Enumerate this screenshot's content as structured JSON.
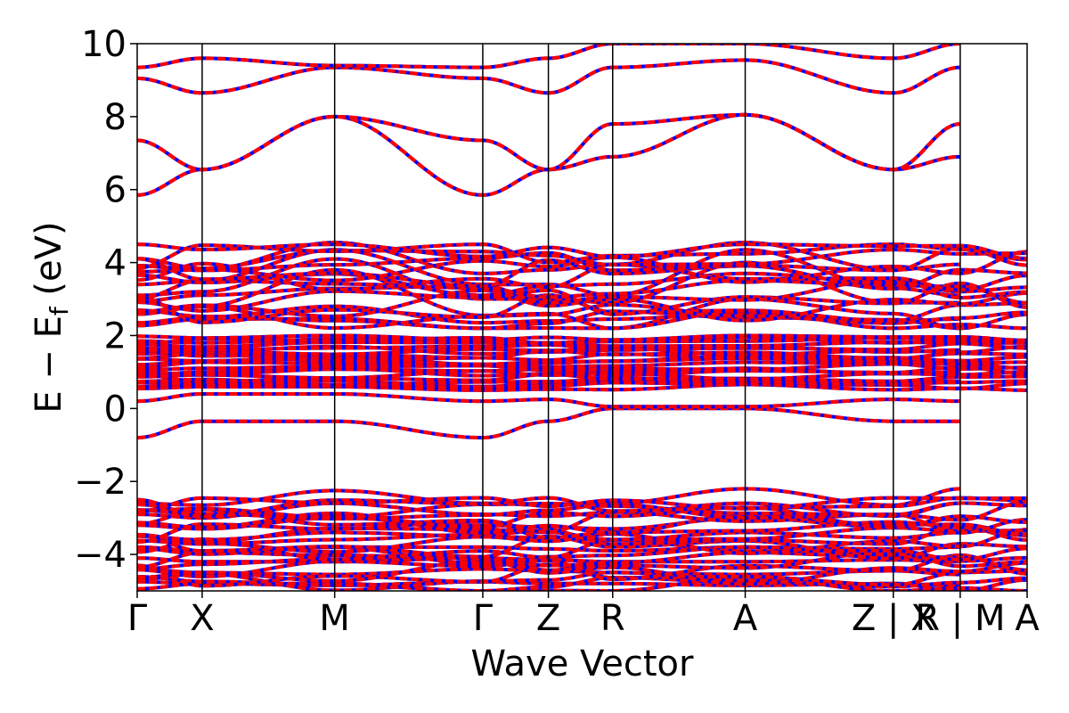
{
  "chart_data": {
    "type": "line",
    "title": "",
    "xlabel": "Wave Vector",
    "ylabel": "E − E",
    "ylabel_sub": "f",
    "ylabel_unit": " (eV)",
    "ylim": [
      -5,
      10
    ],
    "xlim": [
      0,
      13.7
    ],
    "yticks": [
      -4,
      -2,
      0,
      2,
      4,
      6,
      8,
      10
    ],
    "ytick_labels": [
      "−4",
      "−2",
      "0",
      "2",
      "4",
      "6",
      "8",
      "10"
    ],
    "grid": false,
    "high_symmetry_points": [
      {
        "label": "Γ",
        "x": 0.0
      },
      {
        "label": "X",
        "x": 1.0
      },
      {
        "label": "M",
        "x": 3.04
      },
      {
        "label": "Γ",
        "x": 5.32
      },
      {
        "label": "Z",
        "x": 6.33
      },
      {
        "label": "R",
        "x": 7.32
      },
      {
        "label": "A",
        "x": 9.36
      },
      {
        "label": "Z | X",
        "x": 11.64
      },
      {
        "label": "R | M",
        "x": 12.67
      },
      {
        "label": "A",
        "x": 13.7
      }
    ],
    "segment_break_labels": [
      {
        "left": "Z",
        "right": "X",
        "x": 11.64
      },
      {
        "left": "R",
        "right": "M",
        "x": 12.67
      }
    ],
    "series_colors": {
      "band_a": "#ff0000",
      "band_b": "#0000ff"
    },
    "valence_region": [
      -5,
      -2.25
    ],
    "conduction_region": [
      -0.8,
      4.6
    ],
    "upper_bands_region": [
      5.8,
      10
    ],
    "bands": [
      {
        "x": [
          0,
          1,
          3.04,
          5.32,
          6.33,
          7.32,
          9.36,
          11.64,
          12.67
        ],
        "y": [
          -0.8,
          -0.35,
          -0.35,
          -0.8,
          -0.35,
          0.0,
          0.0,
          -0.35,
          -0.35
        ]
      },
      {
        "x": [
          0,
          1,
          3.04,
          5.32,
          6.33,
          7.32,
          9.36,
          11.64,
          12.67
        ],
        "y": [
          0.2,
          0.4,
          0.4,
          0.2,
          0.25,
          0.05,
          0.05,
          0.25,
          0.2
        ]
      },
      {
        "x": [
          0,
          1,
          3.04,
          5.32,
          6.33,
          7.32,
          9.36,
          11.64,
          12.67
        ],
        "y": [
          5.85,
          6.55,
          8.0,
          5.85,
          6.55,
          6.9,
          8.05,
          6.55,
          6.9
        ]
      },
      {
        "x": [
          0,
          1,
          3.04,
          5.32,
          6.33,
          7.32,
          9.36,
          11.64,
          12.67
        ],
        "y": [
          7.35,
          6.55,
          8.0,
          7.35,
          6.55,
          7.8,
          8.05,
          6.55,
          7.8
        ]
      },
      {
        "x": [
          0,
          1,
          3.04,
          5.32,
          6.33,
          7.32,
          9.36,
          11.64,
          12.67
        ],
        "y": [
          9.05,
          8.65,
          9.35,
          9.05,
          8.65,
          9.35,
          9.55,
          8.65,
          9.35
        ]
      },
      {
        "x": [
          0,
          1,
          3.04,
          5.32,
          6.33,
          7.32,
          9.36,
          11.64,
          12.67
        ],
        "y": [
          9.35,
          9.6,
          9.4,
          9.35,
          9.6,
          10.0,
          10.0,
          9.6,
          10.0
        ]
      },
      {
        "x": [
          0,
          1,
          3.04,
          5.32,
          6.33,
          7.32,
          9.36,
          11.64,
          12.67
        ],
        "y": [
          3.75,
          3.8,
          4.55,
          3.7,
          3.8,
          3.95,
          4.55,
          3.8,
          3.95
        ]
      },
      {
        "x": [
          0,
          1,
          3.04,
          5.32,
          6.33,
          7.32,
          9.36,
          11.64,
          12.67
        ],
        "y": [
          3.4,
          3.5,
          4.35,
          3.4,
          3.4,
          3.1,
          4.35,
          3.3,
          3.1
        ]
      },
      {
        "x": [
          0,
          1,
          3.04,
          5.32,
          6.33,
          7.32,
          9.36,
          11.64,
          12.67
        ],
        "y": [
          3.1,
          3.2,
          4.1,
          3.0,
          3.0,
          2.9,
          4.0,
          2.9,
          2.9
        ]
      },
      {
        "x": [
          0,
          1,
          3.04,
          5.32,
          6.33,
          7.32,
          9.36,
          11.64,
          12.67
        ],
        "y": [
          2.6,
          2.8,
          3.8,
          2.55,
          2.6,
          2.2,
          3.0,
          2.6,
          2.2
        ]
      },
      {
        "x": [
          0,
          1,
          3.04,
          5.32,
          6.33,
          7.32,
          9.36,
          11.64,
          12.67
        ],
        "y": [
          2.35,
          2.5,
          2.8,
          2.35,
          2.4,
          2.45,
          2.6,
          2.4,
          2.45
        ]
      },
      {
        "x": [
          0,
          1,
          3.04,
          5.32,
          6.33,
          7.32,
          9.36,
          11.64,
          12.67
        ],
        "y": [
          1.85,
          1.8,
          1.9,
          1.85,
          1.8,
          1.85,
          1.95,
          1.8,
          1.85
        ]
      },
      {
        "x": [
          0,
          1,
          3.04,
          5.32,
          6.33,
          7.32,
          9.36,
          11.64,
          12.67
        ],
        "y": [
          1.5,
          1.55,
          1.7,
          1.5,
          1.55,
          1.6,
          1.7,
          1.55,
          1.6
        ]
      },
      {
        "x": [
          0,
          1,
          3.04,
          5.32,
          6.33,
          7.32,
          9.36,
          11.64,
          12.67
        ],
        "y": [
          1.2,
          1.3,
          1.45,
          1.2,
          1.25,
          1.3,
          1.45,
          1.25,
          1.3
        ]
      },
      {
        "x": [
          0,
          1,
          3.04,
          5.32,
          6.33,
          7.32,
          9.36,
          11.64,
          12.67
        ],
        "y": [
          0.9,
          1.0,
          1.1,
          0.9,
          0.95,
          1.0,
          1.1,
          0.95,
          1.0
        ]
      },
      {
        "x": [
          0,
          1,
          3.04,
          5.32,
          6.33,
          7.32,
          9.36,
          11.64,
          12.67
        ],
        "y": [
          0.6,
          0.7,
          0.75,
          0.6,
          0.7,
          0.75,
          0.75,
          0.7,
          0.75
        ]
      },
      {
        "x": [
          0,
          1,
          3.04,
          5.32,
          6.33,
          7.32,
          9.36,
          11.64,
          12.67
        ],
        "y": [
          -2.6,
          -2.65,
          -2.25,
          -2.6,
          -2.65,
          -2.6,
          -2.2,
          -2.65,
          -2.2
        ]
      },
      {
        "x": [
          0,
          1,
          3.04,
          5.32,
          6.33,
          7.32,
          9.36,
          11.64,
          12.67
        ],
        "y": [
          -2.9,
          -3.0,
          -2.6,
          -2.9,
          -2.95,
          -2.85,
          -2.6,
          -2.95,
          -2.6
        ]
      },
      {
        "x": [
          0,
          1,
          3.04,
          5.32,
          6.33,
          7.32,
          9.36,
          11.64,
          12.67
        ],
        "y": [
          -3.2,
          -3.3,
          -3.0,
          -3.2,
          -3.25,
          -3.3,
          -3.0,
          -3.25,
          -3.0
        ]
      },
      {
        "x": [
          0,
          1,
          3.04,
          5.32,
          6.33,
          7.32,
          9.36,
          11.64,
          12.67
        ],
        "y": [
          -3.5,
          -3.6,
          -3.4,
          -3.5,
          -3.55,
          -3.6,
          -3.4,
          -3.55,
          -3.4
        ]
      },
      {
        "x": [
          0,
          1,
          3.04,
          5.32,
          6.33,
          7.32,
          9.36,
          11.64,
          12.67
        ],
        "y": [
          -3.8,
          -3.9,
          -3.8,
          -3.8,
          -3.85,
          -3.9,
          -3.8,
          -3.85,
          -3.8
        ]
      },
      {
        "x": [
          0,
          1,
          3.04,
          5.32,
          6.33,
          7.32,
          9.36,
          11.64,
          12.67
        ],
        "y": [
          -4.1,
          -4.2,
          -4.2,
          -4.1,
          -4.15,
          -4.2,
          -4.2,
          -4.15,
          -4.2
        ]
      },
      {
        "x": [
          0,
          1,
          3.04,
          5.32,
          6.33,
          7.32,
          9.36,
          11.64,
          12.67
        ],
        "y": [
          -4.4,
          -4.5,
          -4.55,
          -4.4,
          -4.45,
          -4.5,
          -4.55,
          -4.45,
          -4.55
        ]
      },
      {
        "x": [
          0,
          1,
          3.04,
          5.32,
          6.33,
          7.32,
          9.36,
          11.64,
          12.67
        ],
        "y": [
          -4.75,
          -4.8,
          -4.85,
          -4.75,
          -4.8,
          -4.8,
          -4.85,
          -4.8,
          -4.85
        ]
      }
    ]
  }
}
